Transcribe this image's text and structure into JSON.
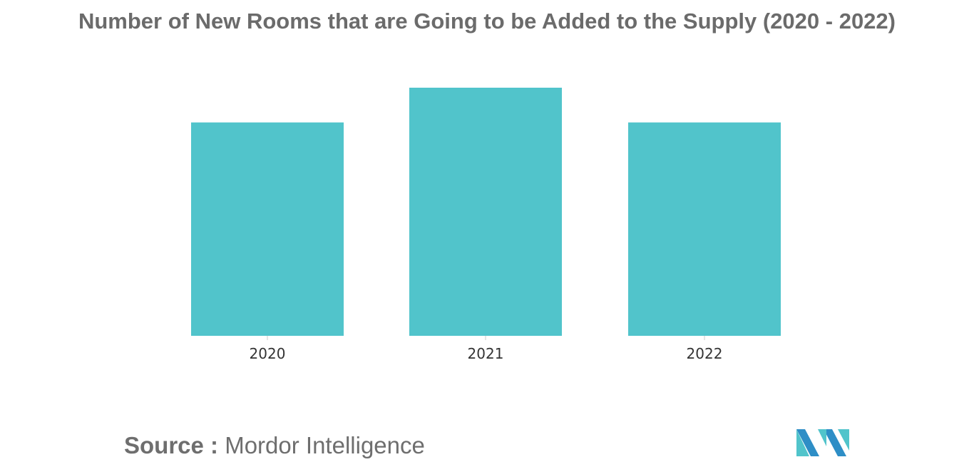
{
  "chart_data": {
    "type": "bar",
    "title": "Number of New Rooms that are Going to be Added to the Supply (2020 - 2022)",
    "categories": [
      "2020",
      "2021",
      "2022"
    ],
    "values": [
      86,
      100,
      86
    ],
    "ylim": [
      0,
      100
    ],
    "grid": false,
    "legend": "none",
    "bar_color": "#51c4cb"
  },
  "source": {
    "label": "Source :",
    "text": "Mordor Intelligence"
  },
  "logo": {
    "icon": "mordor-intelligence-logo-icon",
    "colors": [
      "#2e8ec6",
      "#51c4cb"
    ]
  }
}
